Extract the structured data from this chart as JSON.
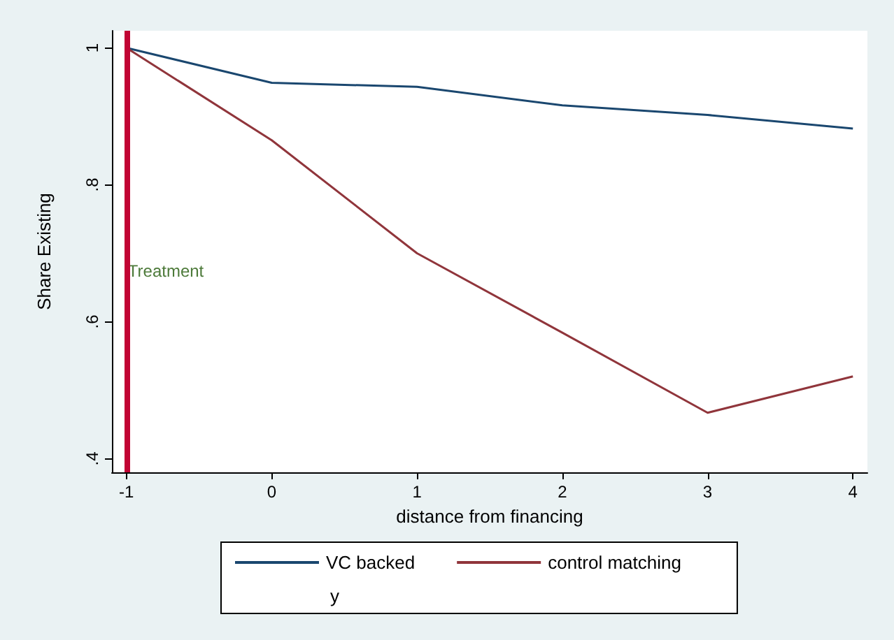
{
  "chart_data": {
    "type": "line",
    "xlabel": "distance from financing",
    "ylabel": "Share Existing",
    "x": [
      -1,
      0,
      1,
      2,
      3,
      4
    ],
    "series": [
      {
        "name": "VC backed",
        "color": "#1a476f",
        "values": [
          1,
          0.949,
          0.943,
          0.916,
          0.902,
          0.882
        ]
      },
      {
        "name": "control matching",
        "color": "#90353b",
        "values": [
          1,
          0.865,
          0.7,
          0.584,
          0.467,
          0.52
        ]
      }
    ],
    "xlim": [
      -1.1,
      4.1
    ],
    "xticks": [
      -1,
      0,
      1,
      2,
      3,
      4
    ],
    "ylim": [
      0.38,
      1.025
    ],
    "yticks": [
      {
        "value": 0.4,
        "label": ".4"
      },
      {
        "value": 0.6,
        "label": ".6"
      },
      {
        "value": 0.8,
        "label": ".8"
      },
      {
        "value": 1,
        "label": "1"
      }
    ],
    "ref_lines": [
      {
        "axis": "x",
        "value": -1,
        "label": "Treatment",
        "color": "#c10534"
      }
    ],
    "annotations": [
      "y"
    ],
    "grid": false,
    "legend": "bottom",
    "marker": "none",
    "line_style": "solid"
  }
}
